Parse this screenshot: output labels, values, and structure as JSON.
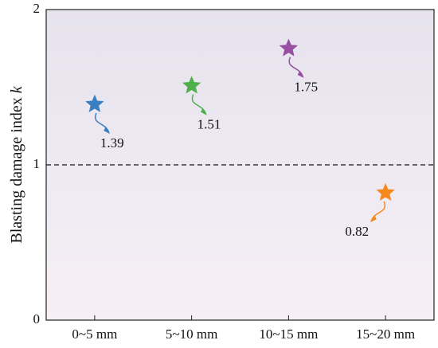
{
  "chart_data": {
    "type": "scatter",
    "ylabel": "Blasting damage index",
    "ylabel_var": "k",
    "categories": [
      "0~5 mm",
      "5~10 mm",
      "10~15 mm",
      "15~20 mm"
    ],
    "values": [
      1.39,
      1.51,
      1.75,
      0.82
    ],
    "colors": [
      "#3b7fc0",
      "#4db04a",
      "#984ea3",
      "#f5891d"
    ],
    "ylim": [
      0,
      2
    ],
    "yticks": [
      0,
      1,
      2
    ],
    "reference_line": 1
  }
}
